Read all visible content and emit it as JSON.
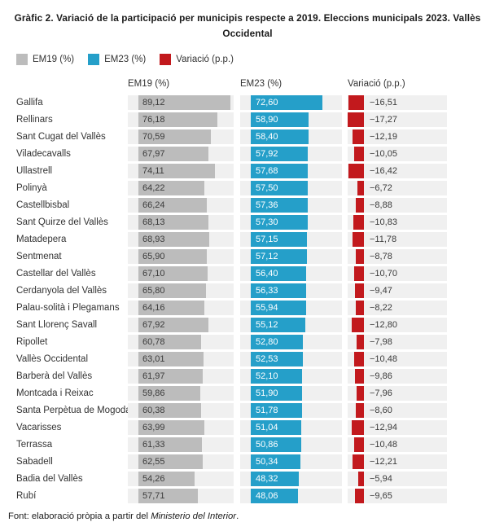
{
  "title_lines": [
    "Gràfic 2. Variació de la participació per municipis respecte a 2019. Eleccions municipals 2023. Vallès",
    "Occidental"
  ],
  "column_headers": [
    "EM19 (%)",
    "EM23 (%)",
    "Variació (p.p.)"
  ],
  "footer": {
    "prefix": "Font: elaboració pròpia a partir del ",
    "italic": "Ministerio del Interior",
    "suffix": "."
  },
  "colors": {
    "em19": "#bcbcbc",
    "em23": "#259fc9",
    "variacio": "#c2191d",
    "track": "#f0f0f0"
  },
  "chart_data": {
    "type": "bar",
    "orientation": "horizontal",
    "title": "Gràfic 2. Variació de la participació per municipis respecte a 2019. Eleccions municipals 2023. Vallès Occidental",
    "value_format": "decimal comma, 2 decimals",
    "legend_position": "top-left",
    "grid": false,
    "categories": [
      "Gallifa",
      "Rellinars",
      "Sant Cugat del Vallès",
      "Viladecavalls",
      "Ullastrell",
      "Polinyà",
      "Castellbisbal",
      "Sant Quirze del Vallès",
      "Matadepera",
      "Sentmenat",
      "Castellar del Vallès",
      "Cerdanyola del Vallès",
      "Palau-solità i Plegamans",
      "Sant Llorenç Savall",
      "Ripollet",
      "Vallès Occidental",
      "Barberà del Vallès",
      "Montcada i Reixac",
      "Santa Perpètua de Mogoda",
      "Vacarisses",
      "Terrassa",
      "Sabadell",
      "Badia del Vallès",
      "Rubí"
    ],
    "series": [
      {
        "name": "EM19 (%)",
        "color": "#bcbcbc",
        "values": [
          89.12,
          76.18,
          70.59,
          67.97,
          74.11,
          64.22,
          66.24,
          68.13,
          68.93,
          65.9,
          67.1,
          65.8,
          64.16,
          67.92,
          60.78,
          63.01,
          61.97,
          59.86,
          60.38,
          63.99,
          61.33,
          62.55,
          54.26,
          57.71
        ]
      },
      {
        "name": "EM23 (%)",
        "color": "#259fc9",
        "values": [
          72.6,
          58.9,
          58.4,
          57.92,
          57.68,
          57.5,
          57.36,
          57.3,
          57.15,
          57.12,
          56.4,
          56.33,
          55.94,
          55.12,
          52.8,
          52.53,
          52.1,
          51.9,
          51.78,
          51.04,
          50.86,
          50.34,
          48.32,
          48.06
        ]
      },
      {
        "name": "Variació (p.p.)",
        "color": "#c2191d",
        "values": [
          -16.51,
          -17.27,
          -12.19,
          -10.05,
          -16.42,
          -6.72,
          -8.88,
          -10.83,
          -11.78,
          -8.78,
          -10.7,
          -9.47,
          -8.22,
          -12.8,
          -7.98,
          -10.48,
          -9.86,
          -7.96,
          -8.6,
          -12.94,
          -10.48,
          -12.21,
          -5.94,
          -9.65
        ]
      }
    ],
    "axis_hints": {
      "pct_bar_scale_max": 92.3,
      "variacio_bar_scale_max": 17.27
    }
  }
}
